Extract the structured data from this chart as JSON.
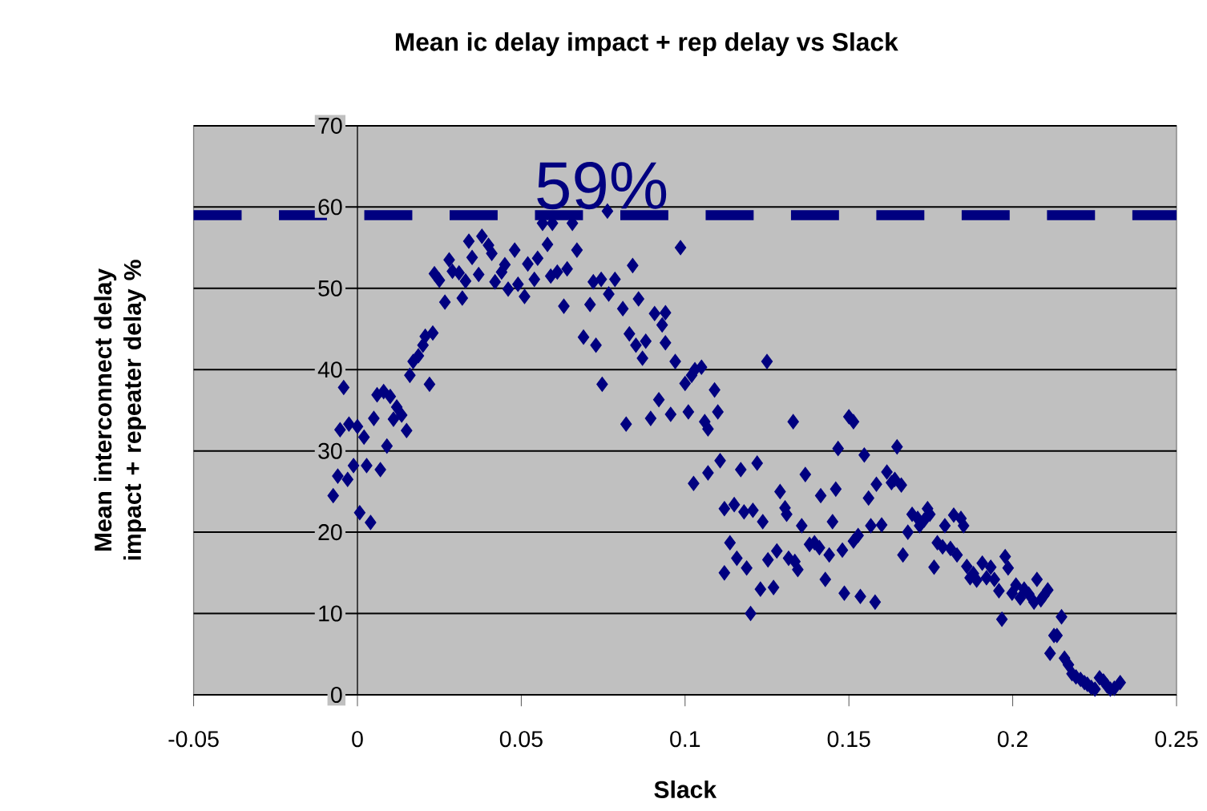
{
  "chart_data": {
    "type": "scatter",
    "title": "Mean ic delay impact + rep delay vs Slack",
    "xlabel": "Slack",
    "ylabel": "Mean interconnect delay impact + repeater delay %",
    "xlim": [
      -0.05,
      0.25
    ],
    "xticks": [
      -0.05,
      0,
      0.05,
      0.1,
      0.15,
      0.2,
      0.25
    ],
    "ylim": [
      0,
      70
    ],
    "yticks": [
      0,
      10,
      20,
      30,
      40,
      50,
      60,
      70
    ],
    "grid": "y",
    "marker": "diamond",
    "ref_lines": [
      {
        "axis": "y",
        "value": 59,
        "label": "59%",
        "color": "#000080",
        "line_style": "dashed"
      }
    ],
    "series": [
      {
        "color": "#000080",
        "x": [
          -0.0074,
          -0.006,
          -0.0042,
          -0.0053,
          -0.003,
          -0.0026,
          -0.0012,
          0,
          0.0007,
          0.002,
          0.0028,
          0.004,
          0.005,
          0.006,
          0.007,
          0.008,
          0.009,
          0.01,
          0.011,
          0.012,
          0.0135,
          0.015,
          0.016,
          0.017,
          0.0186,
          0.02,
          0.0207,
          0.022,
          0.023,
          0.0235,
          0.025,
          0.0267,
          0.028,
          0.029,
          0.031,
          0.032,
          0.033,
          0.034,
          0.035,
          0.037,
          0.038,
          0.04,
          0.041,
          0.042,
          0.044,
          0.045,
          0.046,
          0.048,
          0.049,
          0.051,
          0.052,
          0.054,
          0.055,
          0.058,
          0.0565,
          0.0595,
          0.059,
          0.061,
          0.063,
          0.064,
          0.0656,
          0.067,
          0.069,
          0.071,
          0.072,
          0.0728,
          0.0744,
          0.0747,
          0.0763,
          0.0767,
          0.0786,
          0.081,
          0.082,
          0.083,
          0.084,
          0.085,
          0.0858,
          0.087,
          0.088,
          0.0895,
          0.0907,
          0.092,
          0.093,
          0.094,
          0.094,
          0.0956,
          0.097,
          0.0986,
          0.1,
          0.101,
          0.102,
          0.103,
          0.1026,
          0.105,
          0.106,
          0.107,
          0.107,
          0.109,
          0.11,
          0.1107,
          0.112,
          0.1137,
          0.115,
          0.112,
          0.1158,
          0.117,
          0.118,
          0.1188,
          0.12,
          0.1207,
          0.122,
          0.123,
          0.1237,
          0.125,
          0.1253,
          0.127,
          0.128,
          0.129,
          0.1305,
          0.131,
          0.1316,
          0.133,
          0.1335,
          0.1344,
          0.1356,
          0.1367,
          0.138,
          0.1395,
          0.141,
          0.1414,
          0.1428,
          0.144,
          0.145,
          0.146,
          0.1467,
          0.148,
          0.1486,
          0.15,
          0.1514,
          0.1514,
          0.1528,
          0.1535,
          0.1547,
          0.156,
          0.1567,
          0.158,
          0.1584,
          0.16,
          0.1616,
          0.163,
          0.164,
          0.1647,
          0.166,
          0.1665,
          0.168,
          0.1693,
          0.171,
          0.1716,
          0.173,
          0.174,
          0.1747,
          0.176,
          0.177,
          0.1786,
          0.1793,
          0.181,
          0.182,
          0.183,
          0.1842,
          0.185,
          0.186,
          0.187,
          0.188,
          0.189,
          0.1907,
          0.192,
          0.1933,
          0.1944,
          0.1958,
          0.1967,
          0.1977,
          0.1986,
          0.1998,
          0.201,
          0.2023,
          0.2035,
          0.2049,
          0.2065,
          0.2074,
          0.2086,
          0.2095,
          0.2107,
          0.2114,
          0.2126,
          0.2135,
          0.2149,
          0.2158,
          0.217,
          0.2181,
          0.2193,
          0.2207,
          0.2219,
          0.2228,
          0.224,
          0.2251,
          0.2265,
          0.2277,
          0.2288,
          0.2298,
          0.231,
          0.2328
        ],
        "values": [
          24.5,
          26.9,
          37.8,
          32.6,
          26.5,
          33.3,
          28.2,
          33.0,
          22.4,
          31.7,
          28.2,
          21.2,
          34.0,
          36.9,
          27.7,
          37.3,
          30.6,
          36.7,
          33.9,
          35.4,
          34.4,
          32.5,
          39.3,
          41.0,
          41.7,
          43.0,
          44.1,
          38.2,
          44.5,
          51.8,
          51.0,
          48.3,
          53.5,
          52.1,
          51.9,
          48.8,
          50.9,
          55.8,
          53.8,
          51.7,
          56.4,
          55.3,
          54.3,
          50.8,
          52.0,
          52.9,
          49.9,
          54.7,
          50.5,
          49.0,
          53.0,
          51.1,
          53.7,
          55.4,
          58.0,
          58.0,
          51.5,
          52.0,
          47.8,
          52.4,
          58.0,
          54.7,
          44.0,
          48.0,
          50.8,
          43.0,
          51.1,
          38.2,
          59.5,
          49.3,
          51.1,
          47.5,
          33.3,
          44.4,
          52.8,
          43.0,
          48.7,
          41.4,
          43.5,
          34.0,
          46.9,
          36.3,
          45.5,
          47.0,
          43.3,
          34.5,
          41.0,
          55.0,
          38.3,
          34.8,
          39.3,
          40.0,
          26.0,
          40.3,
          33.6,
          32.7,
          27.3,
          37.5,
          34.8,
          28.8,
          22.9,
          18.7,
          23.4,
          15.0,
          16.8,
          27.7,
          22.5,
          15.6,
          10.0,
          22.7,
          28.5,
          13.0,
          21.3,
          41.0,
          16.6,
          13.2,
          17.7,
          25.0,
          23.0,
          22.2,
          16.8,
          33.6,
          16.4,
          15.4,
          20.8,
          27.1,
          18.5,
          18.7,
          18.1,
          24.5,
          14.2,
          17.2,
          21.3,
          25.3,
          30.3,
          17.8,
          12.5,
          34.2,
          33.6,
          18.9,
          19.6,
          12.1,
          29.5,
          24.2,
          20.8,
          11.4,
          25.9,
          20.9,
          27.4,
          26.1,
          26.5,
          30.5,
          25.8,
          17.2,
          20.0,
          22.2,
          21.7,
          20.8,
          21.5,
          22.9,
          22.2,
          15.7,
          18.7,
          18.2,
          20.8,
          18.0,
          22.1,
          17.2,
          21.7,
          20.8,
          15.8,
          14.4,
          14.9,
          14.1,
          16.2,
          14.4,
          15.7,
          14.2,
          12.8,
          9.3,
          17.0,
          15.6,
          12.5,
          13.5,
          11.9,
          13.0,
          12.4,
          11.4,
          14.2,
          11.7,
          12.2,
          12.9,
          5.1,
          7.3,
          7.3,
          9.6,
          4.5,
          3.7,
          2.6,
          2.2,
          1.9,
          1.5,
          1.3,
          0.9,
          0.7,
          2.1,
          1.7,
          1.1,
          0.7,
          0.8,
          1.5
        ]
      }
    ]
  }
}
